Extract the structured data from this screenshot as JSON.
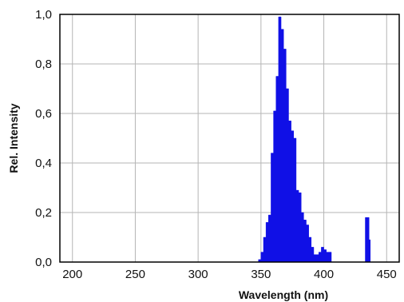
{
  "chart_data": {
    "type": "area",
    "title": "",
    "xlabel": "Wavelength (nm)",
    "ylabel": "Rel. Intensity",
    "xlim": [
      190,
      460
    ],
    "ylim": [
      0,
      1.0
    ],
    "x_ticks": [
      200,
      250,
      300,
      350,
      400,
      450
    ],
    "x_tick_labels": [
      "200",
      "250",
      "300",
      "350",
      "400",
      "450"
    ],
    "y_ticks": [
      0,
      0.2,
      0.4,
      0.6,
      0.8,
      1.0
    ],
    "y_tick_labels": [
      "0,0",
      "0,2",
      "0,4",
      "0,6",
      "0,8",
      "1,0"
    ],
    "grid": true,
    "fill_color": "#1010e6",
    "grid_color": "#b5b5b5",
    "series": [
      {
        "x": [
          344,
          348,
          350,
          352,
          354,
          356,
          358,
          360,
          362,
          364,
          366,
          368,
          370,
          372,
          374,
          376,
          378,
          380,
          382,
          384,
          386,
          388,
          390,
          392,
          394,
          396,
          398,
          400,
          402,
          404,
          406,
          432,
          433,
          434,
          435,
          436,
          437
        ],
        "values": [
          0.0,
          0.01,
          0.04,
          0.1,
          0.16,
          0.19,
          0.44,
          0.61,
          0.75,
          0.99,
          0.94,
          0.86,
          0.7,
          0.57,
          0.53,
          0.5,
          0.29,
          0.28,
          0.2,
          0.17,
          0.15,
          0.1,
          0.06,
          0.03,
          0.03,
          0.04,
          0.06,
          0.05,
          0.04,
          0.04,
          0.0,
          0.0,
          0.18,
          0.18,
          0.18,
          0.09,
          0.0
        ]
      }
    ]
  }
}
